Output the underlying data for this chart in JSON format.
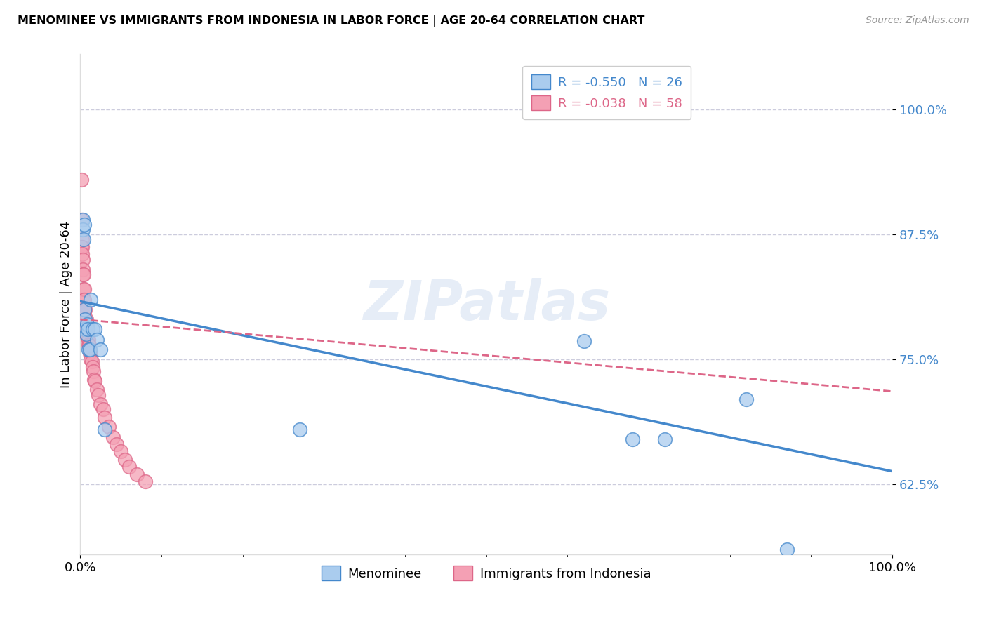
{
  "title": "MENOMINEE VS IMMIGRANTS FROM INDONESIA IN LABOR FORCE | AGE 20-64 CORRELATION CHART",
  "source": "Source: ZipAtlas.com",
  "ylabel": "In Labor Force | Age 20-64",
  "xlim": [
    0.0,
    1.0
  ],
  "ylim": [
    0.555,
    1.055
  ],
  "yticks": [
    0.625,
    0.75,
    0.875,
    1.0
  ],
  "ytick_labels": [
    "62.5%",
    "75.0%",
    "87.5%",
    "100.0%"
  ],
  "legend_labels": [
    "Menominee",
    "Immigrants from Indonesia"
  ],
  "menominee_color": "#aaccee",
  "indonesia_color": "#f4a0b4",
  "menominee_line_color": "#4488cc",
  "indonesia_line_color": "#dd6688",
  "watermark": "ZIPatlas",
  "R_menominee": -0.55,
  "N_menominee": 26,
  "R_indonesia": -0.038,
  "N_indonesia": 58,
  "menominee_x": [
    0.003,
    0.003,
    0.004,
    0.005,
    0.005,
    0.006,
    0.006,
    0.007,
    0.008,
    0.009,
    0.01,
    0.012,
    0.013,
    0.015,
    0.018,
    0.02,
    0.025,
    0.03,
    0.27,
    0.62,
    0.68,
    0.72,
    0.82,
    0.87
  ],
  "menominee_y": [
    0.89,
    0.88,
    0.87,
    0.885,
    0.8,
    0.79,
    0.78,
    0.775,
    0.785,
    0.78,
    0.76,
    0.76,
    0.81,
    0.78,
    0.78,
    0.77,
    0.76,
    0.68,
    0.68,
    0.768,
    0.67,
    0.67,
    0.71,
    0.56
  ],
  "indonesia_x": [
    0.001,
    0.001,
    0.001,
    0.002,
    0.002,
    0.002,
    0.003,
    0.003,
    0.003,
    0.003,
    0.004,
    0.004,
    0.004,
    0.005,
    0.005,
    0.005,
    0.006,
    0.006,
    0.007,
    0.007,
    0.008,
    0.008,
    0.009,
    0.01,
    0.01,
    0.011,
    0.012,
    0.013,
    0.014,
    0.015,
    0.016,
    0.017,
    0.018,
    0.02,
    0.022,
    0.025,
    0.028,
    0.03,
    0.035,
    0.04,
    0.045,
    0.05,
    0.055,
    0.06,
    0.07,
    0.08
  ],
  "indonesia_y": [
    0.93,
    0.89,
    0.862,
    0.87,
    0.862,
    0.855,
    0.85,
    0.84,
    0.835,
    0.795,
    0.835,
    0.82,
    0.81,
    0.82,
    0.81,
    0.798,
    0.8,
    0.79,
    0.79,
    0.782,
    0.78,
    0.773,
    0.774,
    0.77,
    0.765,
    0.764,
    0.756,
    0.75,
    0.748,
    0.742,
    0.738,
    0.73,
    0.728,
    0.72,
    0.714,
    0.705,
    0.7,
    0.692,
    0.683,
    0.672,
    0.665,
    0.658,
    0.65,
    0.643,
    0.635,
    0.628
  ],
  "menominee_line_x": [
    0.0,
    1.0
  ],
  "menominee_line_y": [
    0.808,
    0.638
  ],
  "indonesia_line_x": [
    0.0,
    1.0
  ],
  "indonesia_line_y": [
    0.79,
    0.718
  ]
}
